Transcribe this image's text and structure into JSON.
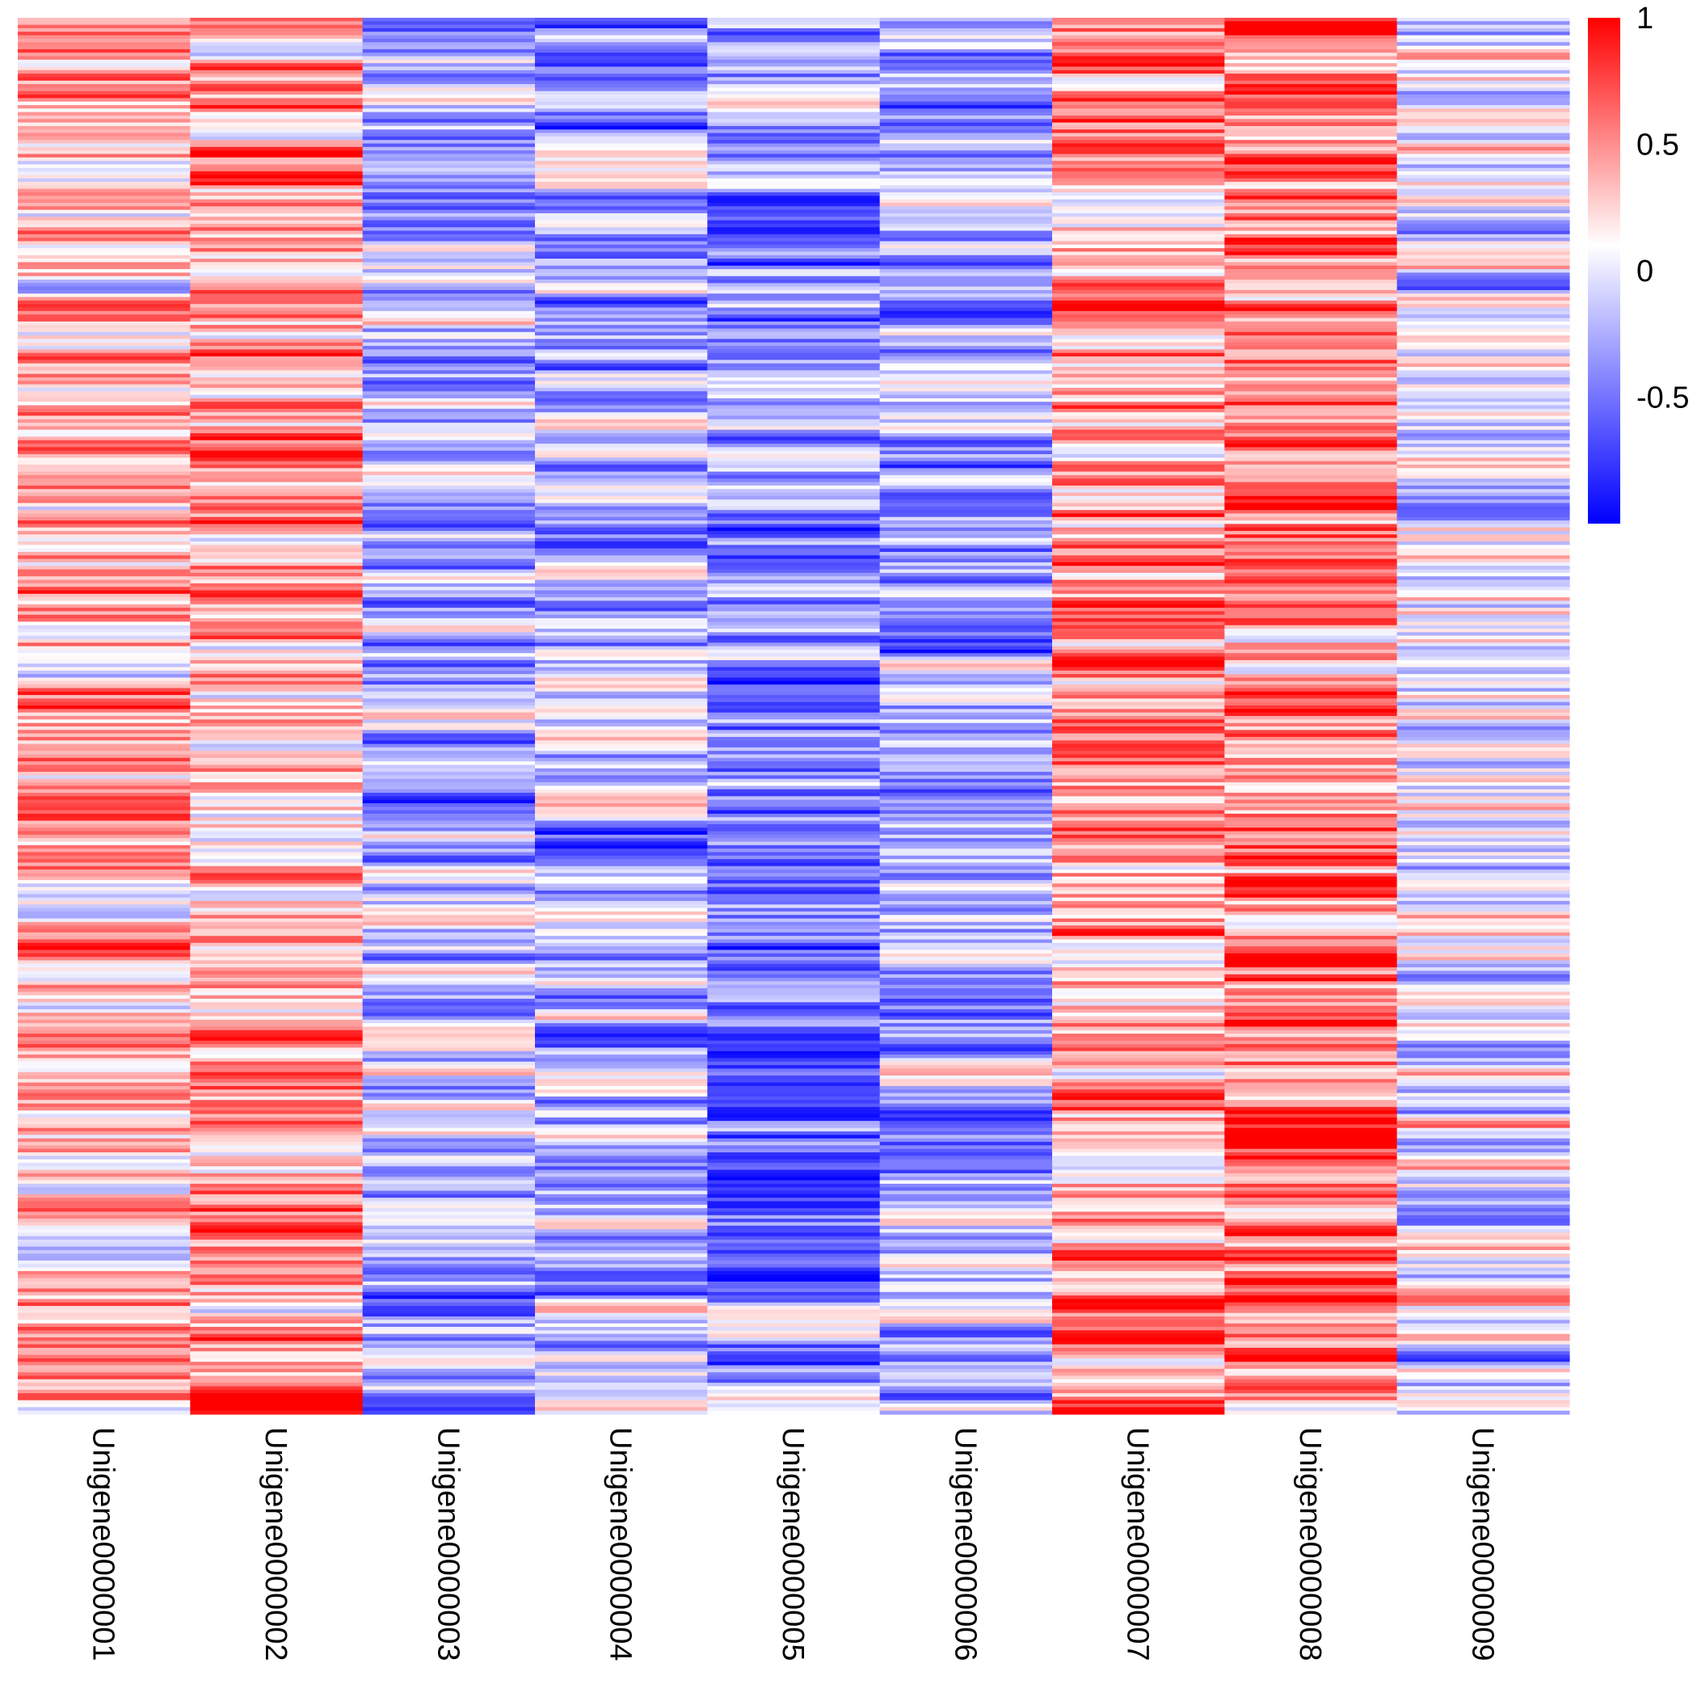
{
  "chart_data": {
    "type": "heatmap",
    "title": "",
    "xlabel": "",
    "ylabel": "",
    "columns": [
      "Unigene0000001",
      "Unigene0000002",
      "Unigene0000003",
      "Unigene0000004",
      "Unigene0000005",
      "Unigene0000006",
      "Unigene0000007",
      "Unigene0000008",
      "Unigene0000009"
    ],
    "row_count": 400,
    "row_labels_shown": false,
    "value_range": [
      -1,
      1
    ],
    "column_mean_tendency": [
      0.3,
      0.45,
      -0.2,
      -0.25,
      -0.4,
      -0.3,
      0.45,
      0.6,
      0.0
    ],
    "note_values": "Each cell is a correlation-like value in [-1, 1]; individual row values are not printed on the figure.",
    "colormap": {
      "low_color": "#0000ff",
      "mid_color": "#ffffff",
      "high_color": "#ff0000",
      "mid_value": 0.1
    },
    "legend": {
      "placement": "top-right",
      "ticks": [
        {
          "value": 1,
          "label": "1"
        },
        {
          "value": 0.5,
          "label": "0.5"
        },
        {
          "value": 0,
          "label": "0"
        },
        {
          "value": -0.5,
          "label": "-0.5"
        }
      ]
    },
    "grid": false
  }
}
